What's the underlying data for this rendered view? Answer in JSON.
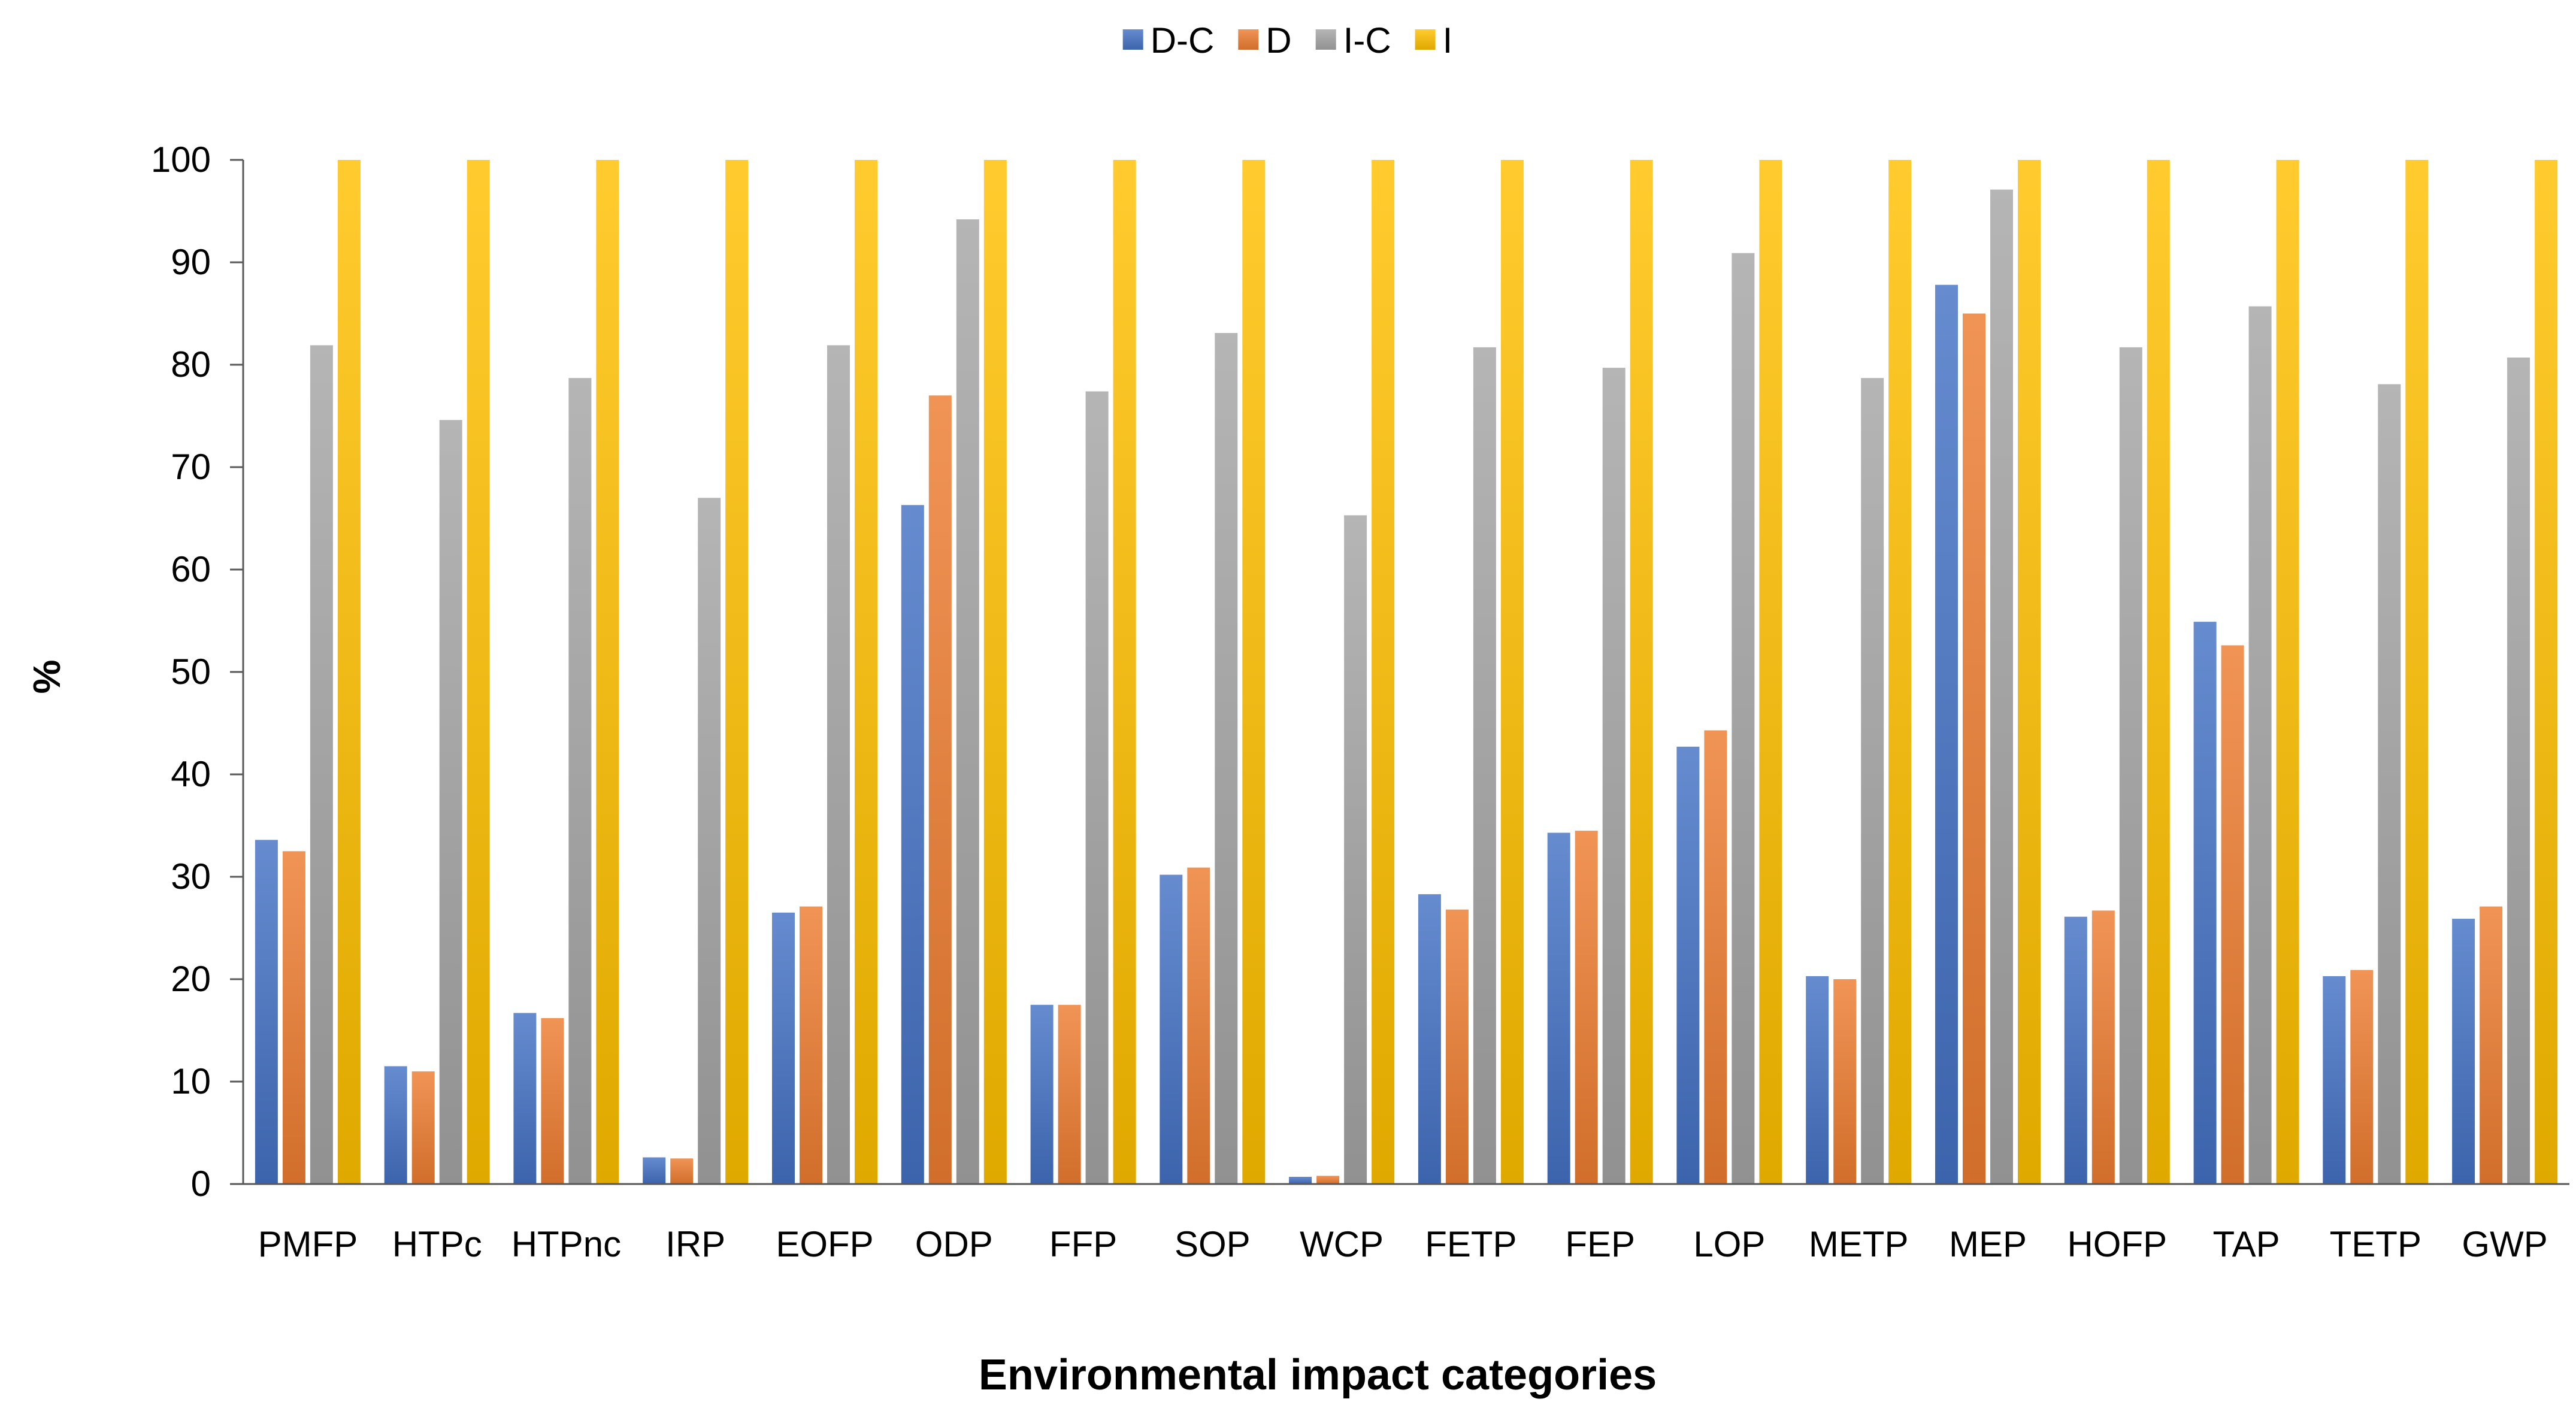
{
  "chart_data": {
    "type": "bar",
    "title": "",
    "xlabel": "Environmental impact categories",
    "ylabel": "%",
    "ylim": [
      0,
      100
    ],
    "yticks": [
      0,
      10,
      20,
      30,
      40,
      50,
      60,
      70,
      80,
      90,
      100
    ],
    "grid": false,
    "legend_position": "top-center",
    "categories": [
      "PMFP",
      "HTPc",
      "HTPnc",
      "IRP",
      "EOFP",
      "ODP",
      "FFP",
      "SOP",
      "WCP",
      "FETP",
      "FEP",
      "LOP",
      "METP",
      "MEP",
      "HOFP",
      "TAP",
      "TETP",
      "GWP"
    ],
    "series": [
      {
        "name": "D-C",
        "color": "#4472C4",
        "values": [
          33.6,
          11.5,
          16.7,
          2.6,
          26.5,
          66.3,
          17.5,
          30.2,
          0.7,
          28.3,
          34.3,
          42.7,
          20.3,
          87.8,
          26.1,
          54.9,
          20.3,
          25.9
        ]
      },
      {
        "name": "D",
        "color": "#ED7D31",
        "values": [
          32.5,
          11.0,
          16.2,
          2.5,
          27.1,
          77.0,
          17.5,
          30.9,
          0.8,
          26.8,
          34.5,
          44.3,
          20.0,
          85.0,
          26.7,
          52.6,
          20.9,
          27.1
        ]
      },
      {
        "name": "I-C",
        "color": "#A5A5A5",
        "values": [
          81.9,
          74.6,
          78.7,
          67.0,
          81.9,
          94.2,
          77.4,
          83.1,
          65.3,
          81.7,
          79.7,
          90.9,
          78.7,
          97.1,
          81.7,
          85.7,
          78.1,
          80.7
        ]
      },
      {
        "name": "I",
        "color": "#FFC000",
        "values": [
          100,
          100,
          100,
          100,
          100,
          100,
          100,
          100,
          100,
          100,
          100,
          100,
          100,
          100,
          100,
          100,
          100,
          100
        ]
      }
    ]
  }
}
